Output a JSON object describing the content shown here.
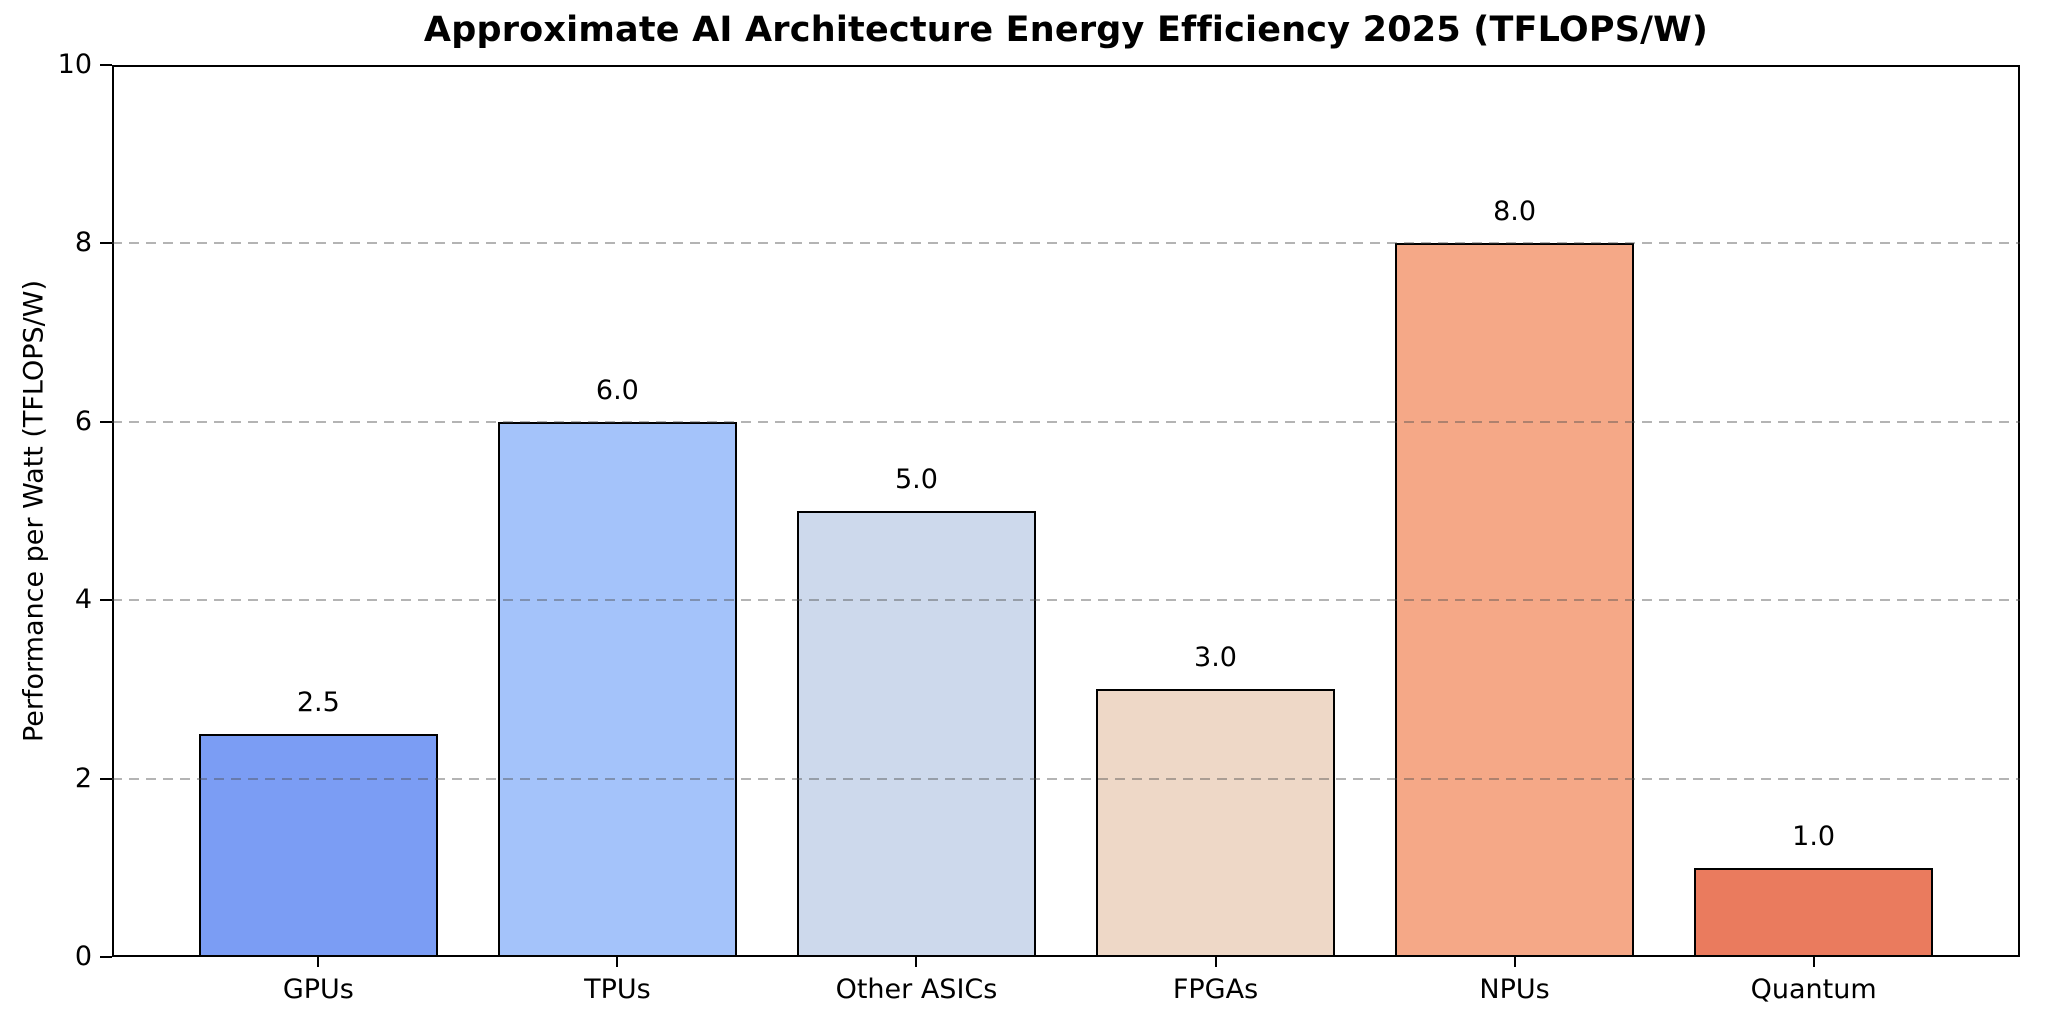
{
  "chart_data": {
    "type": "bar",
    "title": "Approximate AI Architecture Energy Efficiency 2025 (TFLOPS/W)",
    "xlabel": "",
    "ylabel": "Performance per Watt (TFLOPS/W)",
    "categories": [
      "GPUs",
      "TPUs",
      "Other ASICs",
      "FPGAs",
      "NPUs",
      "Quantum"
    ],
    "values": [
      2.5,
      6.0,
      5.0,
      3.0,
      8.0,
      1.0
    ],
    "value_labels": [
      "2.5",
      "6.0",
      "5.0",
      "3.0",
      "8.0",
      "1.0"
    ],
    "bar_colors": [
      "#7b9df4",
      "#a4c3fa",
      "#cdd9ec",
      "#eed8c7",
      "#f5a887",
      "#ea7b5e"
    ],
    "ylim": [
      0,
      10
    ],
    "yticks": [
      0,
      2,
      4,
      6,
      8,
      10
    ],
    "grid": "horizontal dashed gray lines at y=2,4,6,8 drawn over bars",
    "legend": "none",
    "bar_edge_color": "#000000",
    "background_color": "#ffffff"
  }
}
